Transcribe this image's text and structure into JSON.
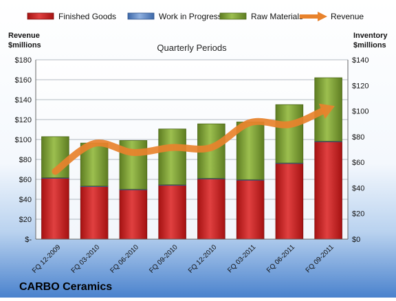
{
  "chart_data": {
    "type": "bar",
    "stacked": true,
    "title": "Quarterly Periods",
    "company": "CARBO Ceramics",
    "left_axis_label": [
      "Revenue",
      "$millions"
    ],
    "right_axis_label": [
      "Inventory",
      "$millions"
    ],
    "legend_position": "top",
    "grid": true,
    "categories": [
      "FQ 12-2009",
      "FQ 03-2010",
      "FQ 06-2010",
      "FQ 09-2010",
      "FQ 12-2010",
      "FQ 03-2011",
      "FQ 06-2011",
      "FQ 09-2011"
    ],
    "left_ylim": [
      0,
      180
    ],
    "left_ticks": [
      "$-",
      "$20",
      "$40",
      "$60",
      "$80",
      "$100",
      "$120",
      "$140",
      "$160",
      "$180"
    ],
    "right_ylim": [
      0,
      140
    ],
    "right_ticks": [
      "$0",
      "$20",
      "$40",
      "$60",
      "$80",
      "$100",
      "$120",
      "$140"
    ],
    "series": [
      {
        "name": "Finished Goods",
        "type": "bar",
        "axis": "right",
        "color": "#cc2222",
        "values": [
          47.5,
          41,
          38.5,
          42,
          47,
          46,
          59,
          76
        ]
      },
      {
        "name": "Work in Progress",
        "type": "bar",
        "axis": "right",
        "color": "#5b86c9",
        "values": [
          0.5,
          0.5,
          0.5,
          0.5,
          0.5,
          0.5,
          0.5,
          0.5
        ]
      },
      {
        "name": "Raw Materials",
        "type": "bar",
        "axis": "right",
        "color": "#7a9c2f",
        "values": [
          32,
          33.5,
          38,
          43.5,
          42.5,
          45,
          45.5,
          49.5
        ]
      },
      {
        "name": "Revenue",
        "type": "line",
        "axis": "left",
        "color": "#e8822c",
        "values": [
          68,
          96,
          87,
          92,
          92,
          117,
          115,
          131
        ]
      }
    ]
  }
}
